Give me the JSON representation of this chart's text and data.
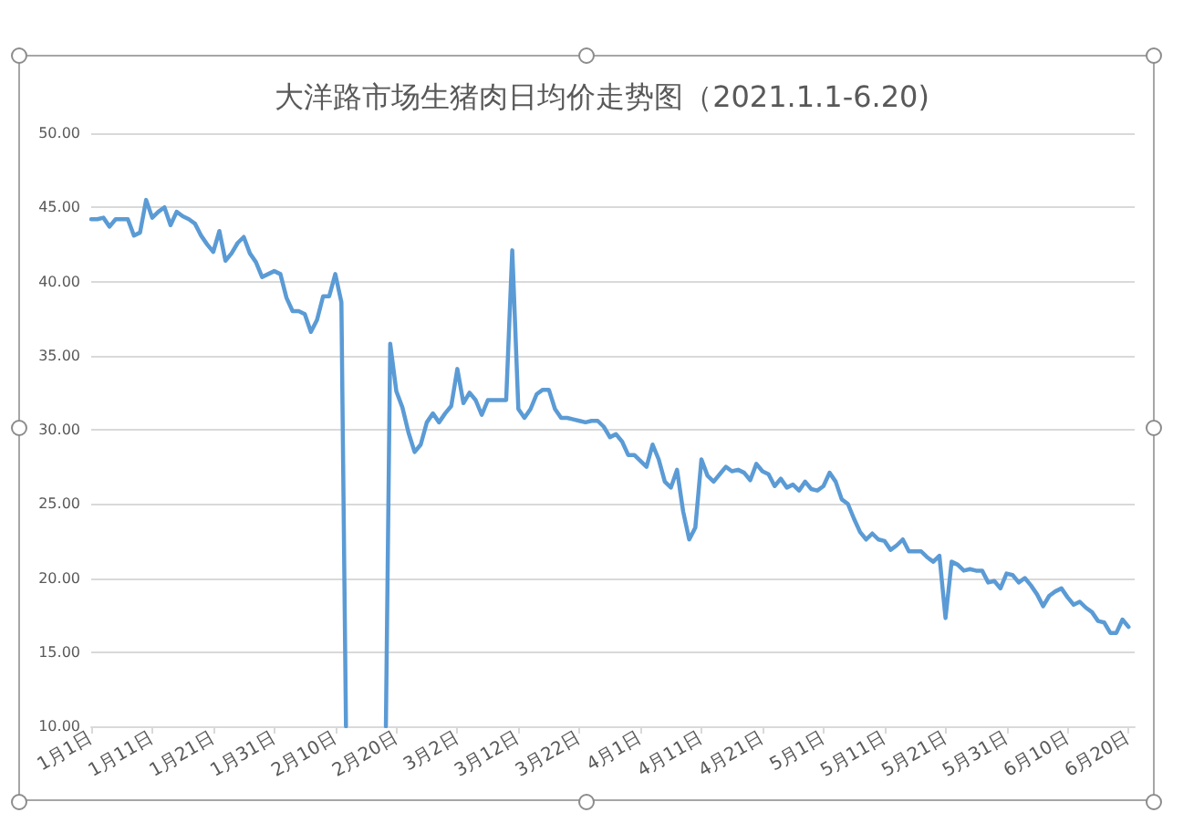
{
  "chart_data": {
    "type": "line",
    "title": "大洋路市场生猪肉日均价走势图（2021.1.1-6.20)",
    "x": [
      "2021-01-01",
      "2021-01-02",
      "2021-01-03",
      "2021-01-04",
      "2021-01-05",
      "2021-01-06",
      "2021-01-07",
      "2021-01-08",
      "2021-01-09",
      "2021-01-10",
      "2021-01-11",
      "2021-01-12",
      "2021-01-13",
      "2021-01-14",
      "2021-01-15",
      "2021-01-16",
      "2021-01-17",
      "2021-01-18",
      "2021-01-19",
      "2021-01-20",
      "2021-01-21",
      "2021-01-22",
      "2021-01-23",
      "2021-01-24",
      "2021-01-25",
      "2021-01-26",
      "2021-01-27",
      "2021-01-28",
      "2021-01-29",
      "2021-01-30",
      "2021-01-31",
      "2021-02-01",
      "2021-02-02",
      "2021-02-03",
      "2021-02-04",
      "2021-02-05",
      "2021-02-06",
      "2021-02-07",
      "2021-02-08",
      "2021-02-09",
      "2021-02-10",
      "2021-02-11",
      "2021-02-11T18:00",
      "2021-02-15",
      "2021-02-18T07:00",
      "2021-02-19",
      "2021-02-20",
      "2021-02-21",
      "2021-02-22",
      "2021-02-23",
      "2021-02-24",
      "2021-02-25",
      "2021-02-26",
      "2021-02-27",
      "2021-02-28",
      "2021-03-01",
      "2021-03-02",
      "2021-03-03",
      "2021-03-04",
      "2021-03-05",
      "2021-03-06",
      "2021-03-07",
      "2021-03-08",
      "2021-03-09",
      "2021-03-10",
      "2021-03-11",
      "2021-03-12",
      "2021-03-13",
      "2021-03-14",
      "2021-03-15",
      "2021-03-16",
      "2021-03-17",
      "2021-03-18",
      "2021-03-19",
      "2021-03-20",
      "2021-03-21",
      "2021-03-22",
      "2021-03-23",
      "2021-03-24",
      "2021-03-25",
      "2021-03-26",
      "2021-03-27",
      "2021-03-28",
      "2021-03-29",
      "2021-03-30",
      "2021-03-31",
      "2021-04-01",
      "2021-04-02",
      "2021-04-03",
      "2021-04-04",
      "2021-04-05",
      "2021-04-06",
      "2021-04-07",
      "2021-04-08",
      "2021-04-09",
      "2021-04-10",
      "2021-04-11",
      "2021-04-12",
      "2021-04-13",
      "2021-04-14",
      "2021-04-15",
      "2021-04-16",
      "2021-04-17",
      "2021-04-18",
      "2021-04-19",
      "2021-04-20",
      "2021-04-21",
      "2021-04-22",
      "2021-04-23",
      "2021-04-24",
      "2021-04-25",
      "2021-04-26",
      "2021-04-27",
      "2021-04-28",
      "2021-04-29",
      "2021-04-30",
      "2021-05-01",
      "2021-05-02",
      "2021-05-03",
      "2021-05-04",
      "2021-05-05",
      "2021-05-06",
      "2021-05-07",
      "2021-05-08",
      "2021-05-09",
      "2021-05-10",
      "2021-05-11",
      "2021-05-12",
      "2021-05-13",
      "2021-05-14",
      "2021-05-15",
      "2021-05-16",
      "2021-05-17",
      "2021-05-18",
      "2021-05-19",
      "2021-05-20",
      "2021-05-21",
      "2021-05-22",
      "2021-05-23",
      "2021-05-24",
      "2021-05-25",
      "2021-05-26",
      "2021-05-27",
      "2021-05-28",
      "2021-05-29",
      "2021-05-30",
      "2021-05-31",
      "2021-06-01",
      "2021-06-02",
      "2021-06-03",
      "2021-06-04",
      "2021-06-05",
      "2021-06-06",
      "2021-06-07",
      "2021-06-08",
      "2021-06-09",
      "2021-06-10",
      "2021-06-11",
      "2021-06-12",
      "2021-06-13",
      "2021-06-14",
      "2021-06-15",
      "2021-06-16",
      "2021-06-17",
      "2021-06-18",
      "2021-06-19",
      "2021-06-20"
    ],
    "values": [
      44.2,
      44.2,
      44.3,
      43.7,
      44.2,
      44.2,
      44.2,
      43.1,
      43.3,
      45.5,
      44.3,
      44.7,
      45.0,
      43.8,
      44.7,
      44.4,
      44.2,
      43.9,
      43.1,
      42.5,
      42.0,
      43.4,
      41.4,
      41.9,
      42.6,
      43.0,
      41.9,
      41.3,
      40.3,
      40.5,
      40.7,
      40.5,
      38.9,
      38.0,
      38.0,
      37.8,
      36.6,
      37.4,
      39.0,
      39.0,
      40.5,
      38.6,
      10,
      null,
      10,
      35.8,
      32.6,
      31.5,
      29.8,
      28.5,
      29.0,
      30.5,
      31.1,
      30.5,
      31.1,
      31.6,
      34.1,
      31.8,
      32.5,
      32.0,
      31.0,
      32.0,
      32.0,
      32.0,
      32.0,
      42.1,
      31.4,
      30.8,
      31.4,
      32.4,
      32.7,
      32.7,
      31.4,
      30.8,
      30.8,
      30.7,
      30.6,
      30.5,
      30.6,
      30.6,
      30.2,
      29.5,
      29.7,
      29.2,
      28.3,
      28.3,
      27.9,
      27.5,
      29.0,
      28.0,
      26.5,
      26.1,
      27.3,
      24.5,
      22.6,
      23.4,
      28.0,
      26.9,
      26.5,
      27.0,
      27.5,
      27.2,
      27.3,
      27.1,
      26.6,
      27.7,
      27.2,
      27.0,
      26.2,
      26.7,
      26.1,
      26.3,
      25.9,
      26.5,
      26.0,
      25.9,
      26.2,
      27.1,
      26.5,
      25.3,
      25.0,
      24.0,
      23.1,
      22.6,
      23.0,
      22.6,
      22.5,
      21.9,
      22.2,
      22.6,
      21.8,
      21.8,
      21.8,
      21.4,
      21.1,
      21.5,
      17.3,
      21.1,
      20.9,
      20.5,
      20.6,
      20.5,
      20.5,
      19.7,
      19.8,
      19.3,
      20.3,
      20.2,
      19.7,
      20.0,
      19.5,
      18.9,
      18.1,
      18.8,
      19.1,
      19.3,
      18.7,
      18.2,
      18.4,
      18.0,
      17.7,
      17.1,
      17.0,
      16.3,
      16.3,
      17.2,
      16.7
    ],
    "color": "#5b9bd5",
    "xlim": [
      "2021-01-01",
      "2021-06-21"
    ],
    "xticks": [
      {
        "value": "2021-01-01",
        "label": "1月1日"
      },
      {
        "value": "2021-01-11",
        "label": "1月11日"
      },
      {
        "value": "2021-01-21",
        "label": "1月21日"
      },
      {
        "value": "2021-01-31",
        "label": "1月31日"
      },
      {
        "value": "2021-02-10",
        "label": "2月10日"
      },
      {
        "value": "2021-02-20",
        "label": "2月20日"
      },
      {
        "value": "2021-03-02",
        "label": "3月2日"
      },
      {
        "value": "2021-03-12",
        "label": "3月12日"
      },
      {
        "value": "2021-03-22",
        "label": "3月22日"
      },
      {
        "value": "2021-04-01",
        "label": "4月1日"
      },
      {
        "value": "2021-04-11",
        "label": "4月11日"
      },
      {
        "value": "2021-04-21",
        "label": "4月21日"
      },
      {
        "value": "2021-05-01",
        "label": "5月1日"
      },
      {
        "value": "2021-05-11",
        "label": "5月11日"
      },
      {
        "value": "2021-05-21",
        "label": "5月21日"
      },
      {
        "value": "2021-05-31",
        "label": "5月31日"
      },
      {
        "value": "2021-06-10",
        "label": "6月10日"
      },
      {
        "value": "2021-06-20",
        "label": "6月20日"
      }
    ],
    "ylim": [
      10,
      50
    ],
    "yticks": [
      {
        "value": 10,
        "label": "10.00"
      },
      {
        "value": 15,
        "label": "15.00"
      },
      {
        "value": 20,
        "label": "20.00"
      },
      {
        "value": 25,
        "label": "25.00"
      },
      {
        "value": 30,
        "label": "30.00"
      },
      {
        "value": 35,
        "label": "35.00"
      },
      {
        "value": 40,
        "label": "40.00"
      },
      {
        "value": 45,
        "label": "45.00"
      },
      {
        "value": 50,
        "label": "50.00"
      }
    ],
    "grid": "y",
    "marker": "none"
  }
}
